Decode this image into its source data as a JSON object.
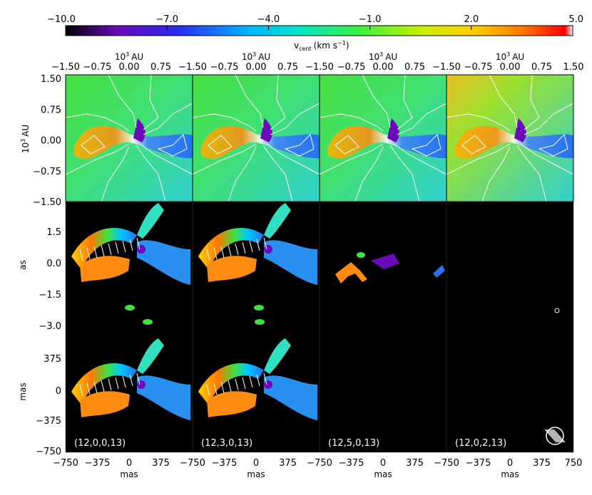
{
  "chart_data": {
    "type": "heatmap",
    "colorbar": {
      "min": -10.0,
      "max": 5.0,
      "ticks": [
        "−10.0",
        "−7.0",
        "−4.0",
        "−1.0",
        "2.0",
        "5.0"
      ],
      "tick_values": [
        -10,
        -7,
        -4,
        -1,
        2,
        5
      ],
      "label": "v",
      "label_sub": "cent",
      "label_unit": "(km s",
      "label_exp": "−1",
      "label_close": ")",
      "colors": [
        "#000000",
        "#6a0ab8",
        "#2a2af0",
        "#00b4ff",
        "#00e6c8",
        "#3cf040",
        "#c8f000",
        "#ffd200",
        "#ff7800",
        "#ff0000",
        "#ffffff"
      ]
    },
    "top_axis": {
      "label": "10",
      "label_exp": "3",
      "label_unit": "AU",
      "ticks": [
        "−1.50",
        "−0.75",
        "0.00",
        "0.75"
      ],
      "last_tick": "1.50"
    },
    "row1_yaxis": {
      "label": "10",
      "label_exp": "3",
      "label_unit": "AU",
      "ticks": [
        "1.50",
        "0.75",
        "0.00",
        "−0.75",
        "−1.50"
      ]
    },
    "row2_yaxis": {
      "label": "as",
      "ticks": [
        "1.5",
        "0.0",
        "−1.5",
        "−3.0"
      ]
    },
    "row3_yaxis": {
      "label": "mas",
      "ticks": [
        "375",
        "0",
        "−375",
        "−750"
      ]
    },
    "bottom_axis": {
      "label": "mas",
      "ticks": [
        "−750",
        "−375",
        "0",
        "375"
      ],
      "last_tick": "750"
    },
    "panels": [
      {
        "tag": "(12,0,0,13)"
      },
      {
        "tag": "(12,3,0,13)"
      },
      {
        "tag": "(12,5,0,13)"
      },
      {
        "tag": "(12,0,2,13)"
      }
    ]
  }
}
